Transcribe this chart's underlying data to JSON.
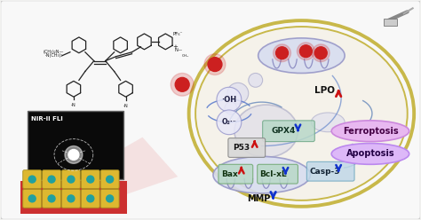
{
  "bg_color": "#f0f0ee",
  "cell_fill": "#f5f2e8",
  "cell_edge": "#c8b84a",
  "mito_fill": "#d8ddf0",
  "mito_edge": "#9898c8",
  "red_dot": "#cc2020",
  "blue_down": "#1133cc",
  "red_up": "#cc1111",
  "ferroptosis_fill": "#e8b8f0",
  "ferroptosis_edge": "#cc88dd",
  "apoptosis_fill": "#ddb8f8",
  "apoptosis_edge": "#bb88ee",
  "gpx4_fill": "#b8d8c8",
  "bax_fill": "#b8d8c8",
  "nucleus_fill": "#d8d8e8",
  "nucleus_edge": "#a0a0c0",
  "vesicle_fill": "#e0e0ee",
  "vesicle_edge": "#b0b0cc",
  "oh_fill": "#e8e8f8",
  "oh_edge": "#9898cc",
  "p53_fill": "#d8d8d8",
  "p53_edge": "#888888",
  "labels": {
    "OH": "·OH",
    "O2": "O₂·⁻",
    "LPO": "LPO",
    "GPX4": "GPX4",
    "P53": "P53",
    "Bax": "Bax",
    "BclxL": "Bcl-xL",
    "Casp3": "Casp-3",
    "MMP": "MMP",
    "Ferroptosis": "Ferroptosis",
    "Apoptosis": "Apoptosis",
    "NIR": "NIR-II FLI"
  }
}
